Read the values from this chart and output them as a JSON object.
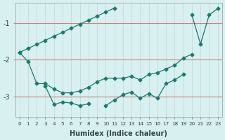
{
  "xlabel": "Humidex (Indice chaleur)",
  "ylabel": "",
  "bg_color": "#d8f0f0",
  "grid_color": "#c8dede",
  "line_color": "#1a7a6e",
  "red_line_color": "#d08080",
  "x_values": [
    0,
    1,
    2,
    3,
    4,
    5,
    6,
    7,
    8,
    9,
    10,
    11,
    12,
    13,
    14,
    15,
    16,
    17,
    18,
    19,
    20,
    21,
    22,
    23
  ],
  "line_straight": [
    -1.8,
    -1.69,
    -1.58,
    -1.47,
    -1.36,
    -1.25,
    -1.14,
    -1.03,
    -0.92,
    -0.81,
    -0.7,
    -0.59,
    null,
    null,
    null,
    null,
    null,
    null,
    null,
    null,
    null,
    null,
    null,
    null
  ],
  "line_straight2": [
    null,
    null,
    null,
    null,
    null,
    null,
    null,
    null,
    null,
    null,
    null,
    null,
    null,
    null,
    null,
    null,
    null,
    null,
    null,
    null,
    -0.78,
    -1.57,
    -0.78,
    -0.6
  ],
  "line_mid": [
    -1.8,
    -2.05,
    -2.65,
    -2.65,
    -2.8,
    -2.9,
    -2.9,
    -2.85,
    -2.75,
    -2.6,
    -2.5,
    -2.5,
    -2.5,
    -2.45,
    -2.55,
    -2.4,
    -2.35,
    -2.25,
    -2.15,
    -1.95,
    -1.85,
    null,
    null,
    null
  ],
  "line_bot": [
    null,
    null,
    null,
    -2.72,
    -3.22,
    -3.15,
    -3.18,
    -3.25,
    -3.2,
    null,
    -3.25,
    -3.1,
    -2.95,
    -2.88,
    -3.05,
    -2.92,
    -3.05,
    -2.65,
    -2.55,
    -2.4,
    null,
    null,
    null,
    null
  ],
  "ylim": [
    -3.55,
    -0.45
  ],
  "yticks": [
    -3.0,
    -2.0,
    -1.0
  ],
  "xlim": [
    -0.5,
    23.5
  ]
}
